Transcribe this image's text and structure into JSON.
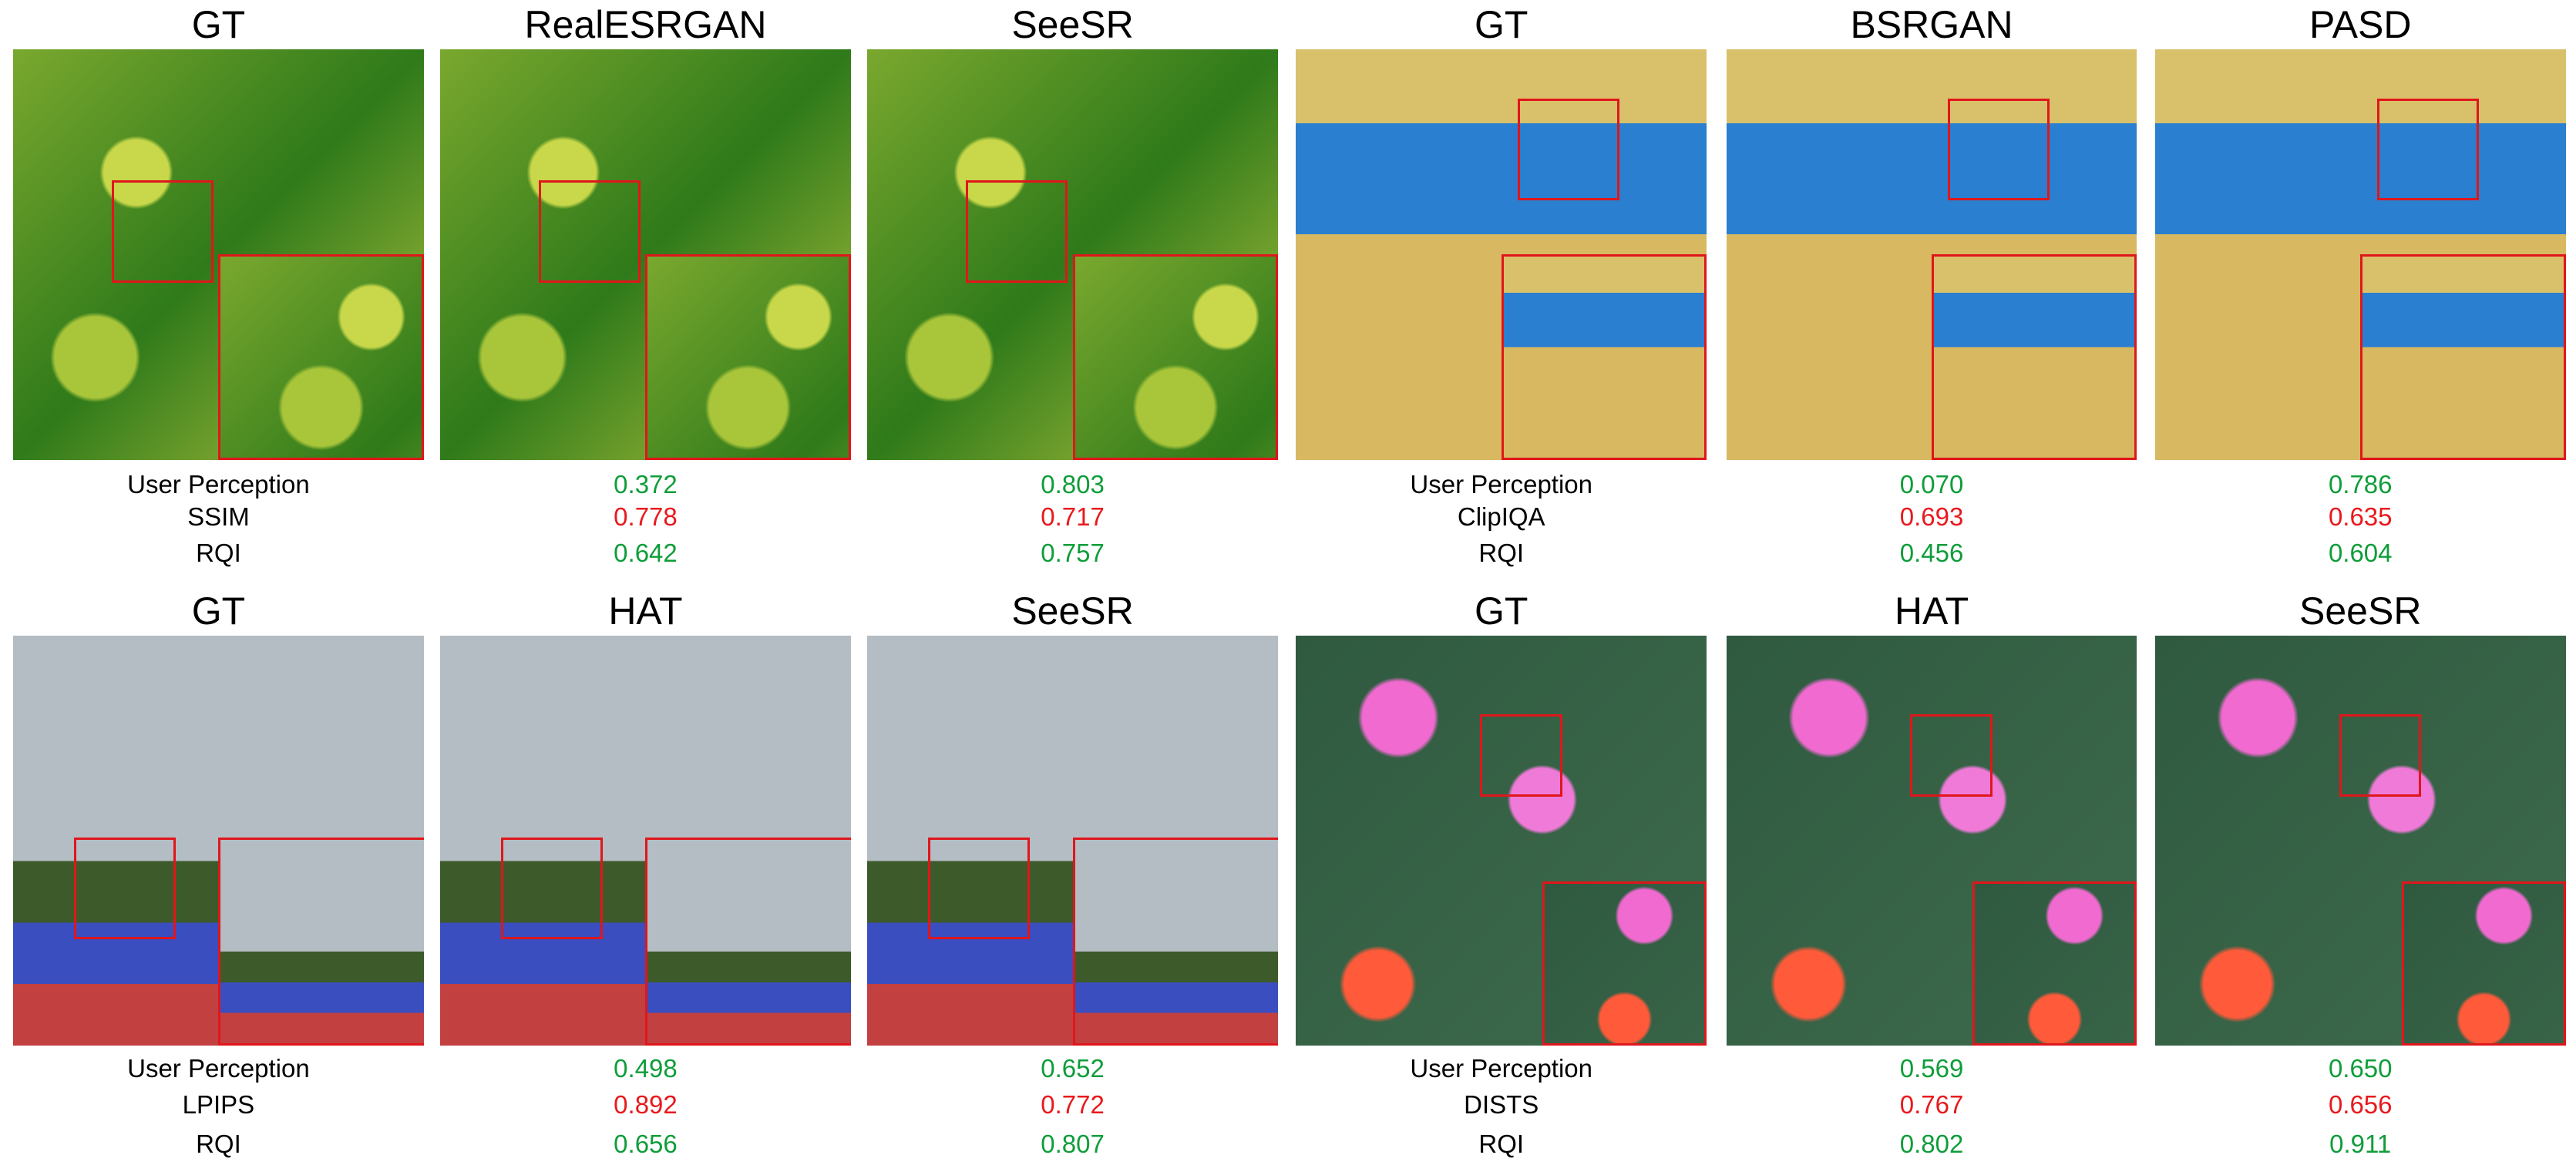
{
  "groups": [
    {
      "metrics": [
        "User Perception",
        "SSIM",
        "RQI"
      ],
      "columns": [
        {
          "title": "GT"
        },
        {
          "title": "RealESRGAN",
          "values": [
            "0.372",
            "0.778",
            "0.642"
          ]
        },
        {
          "title": "SeeSR",
          "values": [
            "0.803",
            "0.717",
            "0.757"
          ]
        }
      ]
    },
    {
      "metrics": [
        "User Perception",
        "ClipIQA",
        "RQI"
      ],
      "columns": [
        {
          "title": "GT"
        },
        {
          "title": "BSRGAN",
          "values": [
            "0.070",
            "0.693",
            "0.456"
          ]
        },
        {
          "title": "PASD",
          "values": [
            "0.786",
            "0.635",
            "0.604"
          ]
        }
      ]
    },
    {
      "metrics": [
        "User Perception",
        "LPIPS",
        "RQI"
      ],
      "columns": [
        {
          "title": "GT"
        },
        {
          "title": "HAT",
          "values": [
            "0.498",
            "0.892",
            "0.656"
          ]
        },
        {
          "title": "SeeSR",
          "values": [
            "0.652",
            "0.772",
            "0.807"
          ]
        }
      ]
    },
    {
      "metrics": [
        "User Perception",
        "DISTS",
        "RQI"
      ],
      "columns": [
        {
          "title": "GT"
        },
        {
          "title": "HAT",
          "values": [
            "0.569",
            "0.767",
            "0.802"
          ]
        },
        {
          "title": "SeeSR",
          "values": [
            "0.650",
            "0.656",
            "0.911"
          ]
        }
      ]
    }
  ]
}
